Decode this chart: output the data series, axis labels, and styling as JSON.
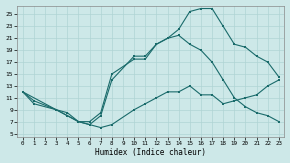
{
  "xlabel": "Humidex (Indice chaleur)",
  "background_color": "#cde8e8",
  "line_color": "#1a6b6b",
  "grid_color": "#b0d4d4",
  "xlim": [
    -0.5,
    23.5
  ],
  "ylim": [
    4.5,
    26.5
  ],
  "xticks": [
    0,
    1,
    2,
    3,
    4,
    5,
    6,
    7,
    8,
    9,
    10,
    11,
    12,
    13,
    14,
    15,
    16,
    17,
    18,
    19,
    20,
    21,
    22,
    23
  ],
  "yticks": [
    5,
    7,
    9,
    11,
    13,
    15,
    17,
    19,
    21,
    23,
    25
  ],
  "line1_x": [
    0,
    1,
    3,
    4,
    5,
    6,
    7,
    8,
    10,
    11,
    12,
    13,
    14,
    15,
    16,
    17,
    18,
    19,
    20,
    21,
    22,
    23
  ],
  "line1_y": [
    12,
    10,
    9,
    8,
    7,
    6.5,
    6,
    6.5,
    9,
    10,
    11,
    12,
    12,
    13,
    11.5,
    11.5,
    10,
    10.5,
    11,
    11.5,
    13,
    14
  ],
  "line2_x": [
    0,
    3,
    4,
    5,
    6,
    7,
    8,
    10,
    11,
    12,
    13,
    14,
    15,
    16,
    17,
    18,
    19,
    20,
    21,
    22,
    23
  ],
  "line2_y": [
    12,
    9,
    8.5,
    7,
    6.5,
    8,
    14,
    18,
    18,
    20,
    21,
    22.5,
    25.5,
    26,
    26,
    23,
    20,
    19.5,
    18,
    17,
    14.5
  ],
  "line3_x": [
    0,
    1,
    3,
    5,
    6,
    7,
    8,
    10,
    11,
    12,
    13,
    14,
    15,
    16,
    17,
    18,
    19,
    20,
    21,
    22,
    23
  ],
  "line3_y": [
    12,
    10.5,
    9,
    7,
    7,
    8.5,
    15,
    17.5,
    17.5,
    20,
    21,
    21.5,
    20,
    19,
    17,
    14,
    11,
    9.5,
    8.5,
    8,
    7
  ]
}
